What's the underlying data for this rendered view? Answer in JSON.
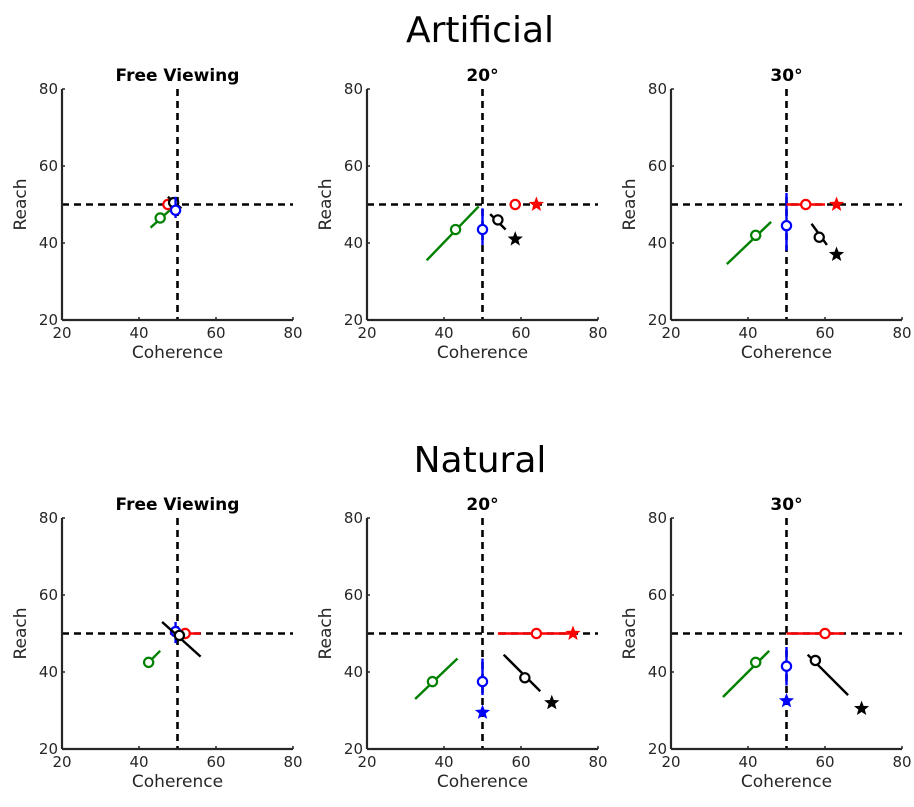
{
  "figure": {
    "row_titles": [
      "Artificial",
      "Natural"
    ]
  },
  "chart_data": [
    {
      "type": "scatter",
      "group": "Artificial",
      "title": "Free Viewing",
      "xlabel": "Coherence",
      "ylabel": "Reach",
      "xlim": [
        20,
        80
      ],
      "ylim": [
        20,
        80
      ],
      "xticks": [
        20,
        40,
        60,
        80
      ],
      "yticks": [
        20,
        40,
        60,
        80
      ],
      "reference_lines": {
        "x": 50,
        "y": 50
      },
      "series": [
        {
          "color": "#008000",
          "circle": [
            45.5,
            46.5
          ],
          "line": [
            [
              43,
              44
            ],
            [
              48,
              48.5
            ]
          ]
        },
        {
          "color": "#ff0000",
          "circle": [
            47.5,
            50
          ],
          "line": [
            [
              47,
              50
            ],
            [
              50,
              50
            ]
          ]
        },
        {
          "color": "#000000",
          "circle": [
            49,
            50.5
          ],
          "line": [
            [
              47.5,
              52
            ],
            [
              51,
              49
            ]
          ]
        },
        {
          "color": "#0000ff",
          "circle": [
            49.5,
            48.5
          ],
          "line": [
            [
              49.5,
              46.5
            ],
            [
              49.5,
              52
            ]
          ]
        }
      ]
    },
    {
      "type": "scatter",
      "group": "Artificial",
      "title": "20°",
      "xlabel": "Coherence",
      "ylabel": "Reach",
      "xlim": [
        20,
        80
      ],
      "ylim": [
        20,
        80
      ],
      "xticks": [
        20,
        40,
        60,
        80
      ],
      "yticks": [
        20,
        40,
        60,
        80
      ],
      "reference_lines": {
        "x": 50,
        "y": 50
      },
      "series": [
        {
          "color": "#008000",
          "circle": [
            43,
            43.5
          ],
          "line": [
            [
              35.5,
              35.5
            ],
            [
              49,
              49.5
            ]
          ]
        },
        {
          "color": "#0000ff",
          "circle": [
            50,
            43.5
          ],
          "line": [
            [
              50,
              39.5
            ],
            [
              50,
              49
            ]
          ]
        },
        {
          "color": "#000000",
          "circle": [
            54,
            46
          ],
          "star": [
            58.5,
            41
          ],
          "line": [
            [
              52,
              47.5
            ],
            [
              56,
              43.5
            ]
          ]
        },
        {
          "color": "#ff0000",
          "circle": [
            58.5,
            50
          ],
          "star": [
            64,
            50
          ],
          "line": [
            [
              57,
              50
            ],
            [
              60,
              50
            ]
          ]
        }
      ]
    },
    {
      "type": "scatter",
      "group": "Artificial",
      "title": "30°",
      "xlabel": "Coherence",
      "ylabel": "Reach",
      "xlim": [
        20,
        80
      ],
      "ylim": [
        20,
        80
      ],
      "xticks": [
        20,
        40,
        60,
        80
      ],
      "yticks": [
        20,
        40,
        60,
        80
      ],
      "reference_lines": {
        "x": 50,
        "y": 50
      },
      "series": [
        {
          "color": "#008000",
          "circle": [
            42,
            42
          ],
          "line": [
            [
              34.5,
              34.5
            ],
            [
              46,
              45.5
            ]
          ]
        },
        {
          "color": "#0000ff",
          "circle": [
            50,
            44.5
          ],
          "line": [
            [
              50,
              38
            ],
            [
              50,
              53
            ]
          ]
        },
        {
          "color": "#ff0000",
          "circle": [
            55,
            50
          ],
          "star": [
            63,
            50
          ],
          "line": [
            [
              50,
              50
            ],
            [
              60,
              50
            ]
          ]
        },
        {
          "color": "#000000",
          "circle": [
            58.5,
            41.5
          ],
          "star": [
            63,
            37
          ],
          "line": [
            [
              56.5,
              45
            ],
            [
              60.5,
              39.5
            ]
          ]
        }
      ]
    },
    {
      "type": "scatter",
      "group": "Natural",
      "title": "Free Viewing",
      "xlabel": "Coherence",
      "ylabel": "Reach",
      "xlim": [
        20,
        80
      ],
      "ylim": [
        20,
        80
      ],
      "xticks": [
        20,
        40,
        60,
        80
      ],
      "yticks": [
        20,
        40,
        60,
        80
      ],
      "reference_lines": {
        "x": 50,
        "y": 50
      },
      "series": [
        {
          "color": "#008000",
          "circle": [
            42.5,
            42.5
          ],
          "line": [
            [
              42,
              42
            ],
            [
              45.5,
              45.5
            ]
          ]
        },
        {
          "color": "#ff0000",
          "circle": [
            52,
            50
          ],
          "line": [
            [
              48,
              50
            ],
            [
              56,
              50
            ]
          ]
        },
        {
          "color": "#0000ff",
          "circle": [
            49.5,
            50.5
          ],
          "line": [
            [
              49.5,
              47.5
            ],
            [
              49.5,
              53
            ]
          ]
        },
        {
          "color": "#000000",
          "circle": [
            50.5,
            49.5
          ],
          "line": [
            [
              46,
              53
            ],
            [
              56,
              44
            ]
          ]
        }
      ]
    },
    {
      "type": "scatter",
      "group": "Natural",
      "title": "20°",
      "xlabel": "Coherence",
      "ylabel": "Reach",
      "xlim": [
        20,
        80
      ],
      "ylim": [
        20,
        80
      ],
      "xticks": [
        20,
        40,
        60,
        80
      ],
      "yticks": [
        20,
        40,
        60,
        80
      ],
      "reference_lines": {
        "x": 50,
        "y": 50
      },
      "series": [
        {
          "color": "#008000",
          "circle": [
            37,
            37.5
          ],
          "line": [
            [
              32.5,
              33
            ],
            [
              43.5,
              43.5
            ]
          ]
        },
        {
          "color": "#0000ff",
          "circle": [
            50,
            37.5
          ],
          "star": [
            50,
            29.5
          ],
          "line": [
            [
              50,
              34
            ],
            [
              50,
              43.5
            ]
          ]
        },
        {
          "color": "#000000",
          "circle": [
            61,
            38.5
          ],
          "star": [
            68,
            32
          ],
          "line": [
            [
              55.5,
              44.5
            ],
            [
              65,
              35
            ]
          ]
        },
        {
          "color": "#ff0000",
          "circle": [
            64,
            50
          ],
          "star": [
            73.5,
            50
          ],
          "line": [
            [
              54,
              50
            ],
            [
              74,
              50
            ]
          ]
        }
      ]
    },
    {
      "type": "scatter",
      "group": "Natural",
      "title": "30°",
      "xlabel": "Coherence",
      "ylabel": "Reach",
      "xlim": [
        20,
        80
      ],
      "ylim": [
        20,
        80
      ],
      "xticks": [
        20,
        40,
        60,
        80
      ],
      "yticks": [
        20,
        40,
        60,
        80
      ],
      "reference_lines": {
        "x": 50,
        "y": 50
      },
      "series": [
        {
          "color": "#008000",
          "circle": [
            42,
            42.5
          ],
          "line": [
            [
              33.5,
              33.5
            ],
            [
              45.5,
              45.5
            ]
          ]
        },
        {
          "color": "#0000ff",
          "circle": [
            50,
            41.5
          ],
          "star": [
            50,
            32.5
          ],
          "line": [
            [
              50,
              36.5
            ],
            [
              50,
              46.5
            ]
          ]
        },
        {
          "color": "#ff0000",
          "circle": [
            60,
            50
          ],
          "line": [
            [
              50,
              50
            ],
            [
              65,
              50
            ]
          ]
        },
        {
          "color": "#000000",
          "circle": [
            57.5,
            43
          ],
          "star": [
            69.5,
            30.5
          ],
          "line": [
            [
              55.5,
              44.5
            ],
            [
              66,
              34
            ]
          ]
        }
      ]
    }
  ]
}
